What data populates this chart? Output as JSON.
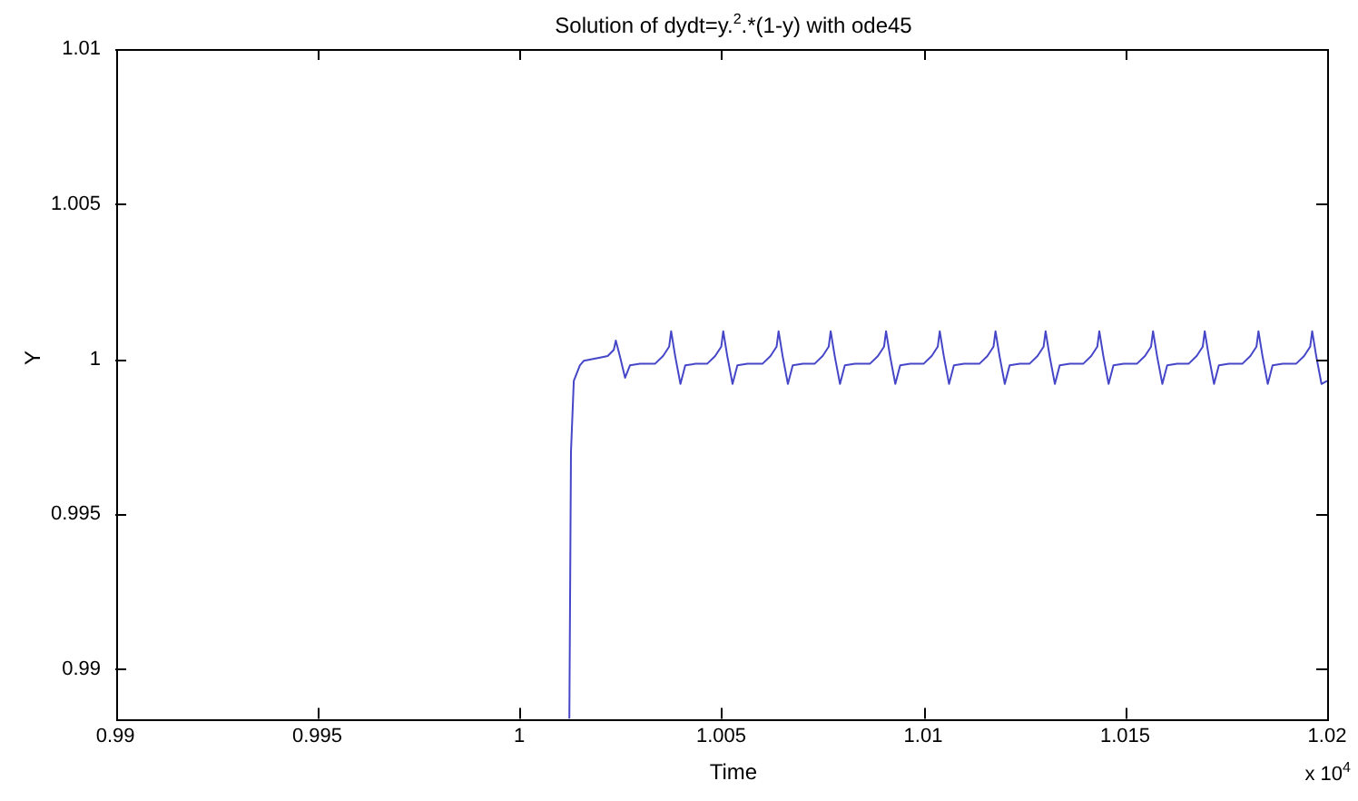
{
  "chart_data": {
    "type": "line",
    "title": "Solution of dydt=y.$^{2}$.*(1-y) with ode45",
    "xlabel": "Time",
    "ylabel": "Y",
    "annotations": [
      "x 10$^{4}$"
    ],
    "xlim": [
      0.99,
      1.02
    ],
    "xticks": [
      0.99,
      0.995,
      1,
      1.005,
      1.01,
      1.015,
      1.02
    ],
    "ylim": [
      0.9884,
      1.01
    ],
    "yticks": [
      0.99,
      0.995,
      1,
      1.005,
      1.01
    ],
    "grid": false,
    "legend": false,
    "marker": "none",
    "line_style": "solid",
    "series": [
      {
        "color": "#4646c8",
        "x": [
          1.00124,
          1.00128,
          1.00135,
          1.0015,
          1.0016,
          1.002,
          1.00219,
          1.00234,
          1.00239,
          1.00249,
          1.00262,
          1.00274,
          1.00299,
          1.00336,
          1.00356,
          1.00371,
          1.00376,
          1.00386,
          1.00399,
          1.00411,
          1.00436,
          1.00465,
          1.00485,
          1.005,
          1.00505,
          1.00515,
          1.00528,
          1.0054,
          1.00565,
          1.00602,
          1.00622,
          1.00637,
          1.00642,
          1.00652,
          1.00665,
          1.00677,
          1.00702,
          1.00731,
          1.00751,
          1.00766,
          1.00771,
          1.00781,
          1.00794,
          1.00806,
          1.00831,
          1.00868,
          1.00888,
          1.00903,
          1.00908,
          1.00918,
          1.00931,
          1.00943,
          1.00968,
          1.01001,
          1.01021,
          1.01036,
          1.01041,
          1.01051,
          1.01064,
          1.01076,
          1.01101,
          1.01139,
          1.01159,
          1.01174,
          1.01179,
          1.01189,
          1.01202,
          1.01214,
          1.01239,
          1.01263,
          1.01283,
          1.01298,
          1.01303,
          1.01313,
          1.01326,
          1.01338,
          1.01363,
          1.01396,
          1.01416,
          1.01431,
          1.01436,
          1.01446,
          1.01459,
          1.01471,
          1.01496,
          1.01529,
          1.01549,
          1.01564,
          1.01569,
          1.01579,
          1.01592,
          1.01604,
          1.01629,
          1.01657,
          1.01677,
          1.01692,
          1.01697,
          1.01707,
          1.0172,
          1.01732,
          1.01757,
          1.0179,
          1.0181,
          1.01825,
          1.0183,
          1.0184,
          1.01853,
          1.01865,
          1.0189,
          1.01923,
          1.01943,
          1.01958,
          1.01963,
          1.01973,
          1.01986,
          1.02
        ],
        "values": [
          0.9884,
          0.997,
          0.9993,
          0.9998,
          0.99995,
          1.00005,
          1.0001,
          1.0003,
          1.0006,
          1.0001,
          0.9994,
          0.9998,
          0.99985,
          0.99985,
          1.0001,
          1.0004,
          1.0009,
          1.0001,
          0.9992,
          0.9998,
          0.99985,
          0.99985,
          1.0001,
          1.0004,
          1.0009,
          1.0001,
          0.9992,
          0.9998,
          0.99985,
          0.99985,
          1.0001,
          1.0004,
          1.0009,
          1.0001,
          0.9992,
          0.9998,
          0.99985,
          0.99985,
          1.0001,
          1.0004,
          1.0009,
          1.0001,
          0.9992,
          0.9998,
          0.99985,
          0.99985,
          1.0001,
          1.0004,
          1.0009,
          1.0001,
          0.9992,
          0.9998,
          0.99985,
          0.99985,
          1.0001,
          1.0004,
          1.0009,
          1.0001,
          0.9992,
          0.9998,
          0.99985,
          0.99985,
          1.0001,
          1.0004,
          1.0009,
          1.0001,
          0.9992,
          0.9998,
          0.99985,
          0.99985,
          1.0001,
          1.0004,
          1.0009,
          1.0001,
          0.9992,
          0.9998,
          0.99985,
          0.99985,
          1.0001,
          1.0004,
          1.0009,
          1.0001,
          0.9992,
          0.9998,
          0.99985,
          0.99985,
          1.0001,
          1.0004,
          1.0009,
          1.0001,
          0.9992,
          0.9998,
          0.99985,
          0.99985,
          1.0001,
          1.0004,
          1.0009,
          1.0001,
          0.9992,
          0.9998,
          0.99985,
          0.99985,
          1.0001,
          1.0004,
          1.0009,
          1.0001,
          0.9992,
          0.9998,
          0.99985,
          0.99985,
          1.0001,
          1.0004,
          1.0009,
          1.0001,
          0.9992,
          0.9993
        ]
      }
    ]
  }
}
